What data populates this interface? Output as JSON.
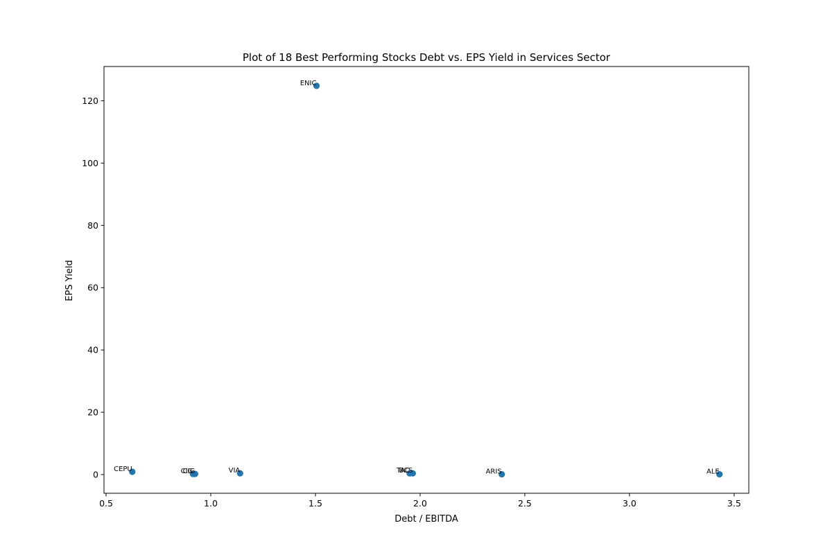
{
  "chart_data": {
    "type": "scatter",
    "title": "Plot of 18 Best Performing Stocks Debt vs. EPS Yield in Services Sector",
    "xlabel": "Debt / EBITDA",
    "ylabel": "EPS Yield",
    "xlim": [
      0.49,
      3.57
    ],
    "ylim": [
      -6,
      131
    ],
    "x_ticks": [
      0.5,
      1.0,
      1.5,
      2.0,
      2.5,
      3.0,
      3.5
    ],
    "x_tick_labels": [
      "0.5",
      "1.0",
      "1.5",
      "2.0",
      "2.5",
      "3.0",
      "3.5"
    ],
    "y_ticks": [
      0,
      20,
      40,
      60,
      80,
      100,
      120
    ],
    "y_tick_labels": [
      "0",
      "20",
      "40",
      "60",
      "80",
      "100",
      "120"
    ],
    "grid": false,
    "marker_color": "#1f77b4",
    "points": [
      {
        "label": "ENIC",
        "x": 1.505,
        "y": 124.8
      },
      {
        "label": "CEPU",
        "x": 0.625,
        "y": 0.9
      },
      {
        "label": "CIG",
        "x": 0.915,
        "y": 0.2
      },
      {
        "label": "CIG",
        "x": 0.925,
        "y": 0.2
      },
      {
        "label": "VIA",
        "x": 1.14,
        "y": 0.4
      },
      {
        "label": "TAC",
        "x": 1.95,
        "y": 0.4
      },
      {
        "label": "BCS",
        "x": 1.965,
        "y": 0.4
      },
      {
        "label": "ARIS",
        "x": 2.39,
        "y": 0.1
      },
      {
        "label": "ALE",
        "x": 3.43,
        "y": 0.1
      }
    ]
  }
}
